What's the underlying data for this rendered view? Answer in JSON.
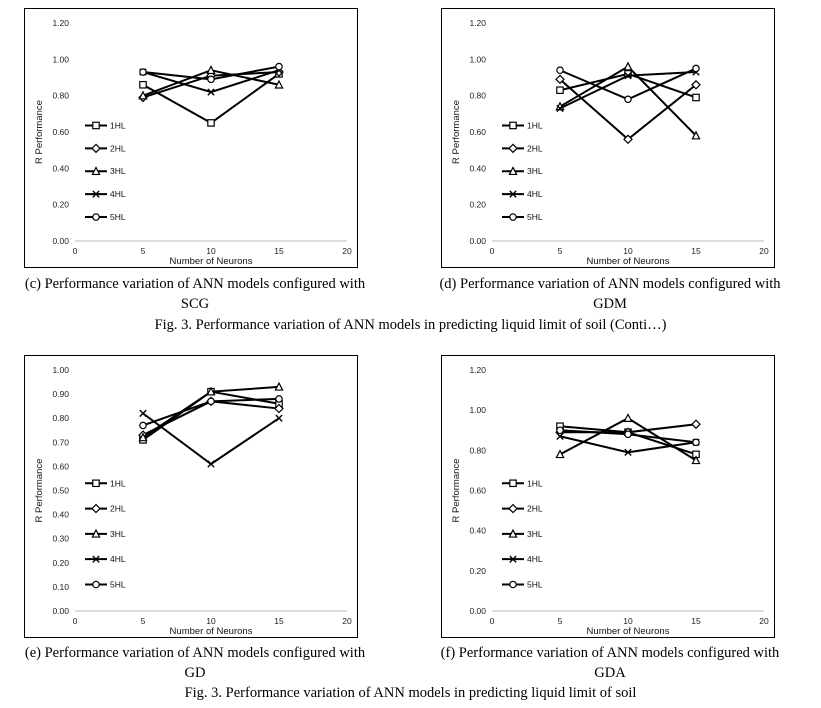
{
  "chart_data": [
    {
      "id": "c",
      "type": "line",
      "x": [
        5,
        10,
        15
      ],
      "xlim": [
        0,
        20
      ],
      "xticks": [
        0,
        5,
        10,
        15,
        20
      ],
      "ylim": [
        0,
        1.2
      ],
      "yticks": [
        "0.00",
        "0.20",
        "0.40",
        "0.60",
        "0.80",
        "1.00",
        "1.20"
      ],
      "xlabel": "Number of Neurons",
      "ylabel": "R Performance",
      "legend_position": "left",
      "series": [
        {
          "name": "1HL",
          "marker": "square",
          "values": [
            0.86,
            0.65,
            0.92
          ]
        },
        {
          "name": "2HL",
          "marker": "diamond",
          "values": [
            0.79,
            0.91,
            0.93
          ]
        },
        {
          "name": "3HL",
          "marker": "triangle",
          "values": [
            0.8,
            0.94,
            0.86
          ]
        },
        {
          "name": "4HL",
          "marker": "x",
          "values": [
            0.93,
            0.82,
            0.94
          ]
        },
        {
          "name": "5HL",
          "marker": "circle",
          "values": [
            0.93,
            0.89,
            0.96
          ]
        }
      ]
    },
    {
      "id": "d",
      "type": "line",
      "x": [
        5,
        10,
        15
      ],
      "xlim": [
        0,
        20
      ],
      "xticks": [
        0,
        5,
        10,
        15,
        20
      ],
      "ylim": [
        0,
        1.2
      ],
      "yticks": [
        "0.00",
        "0.20",
        "0.40",
        "0.60",
        "0.80",
        "1.00",
        "1.20"
      ],
      "xlabel": "Number of Neurons",
      "ylabel": "R Performance",
      "legend_position": "left",
      "series": [
        {
          "name": "1HL",
          "marker": "square",
          "values": [
            0.83,
            0.92,
            0.79
          ]
        },
        {
          "name": "2HL",
          "marker": "diamond",
          "values": [
            0.89,
            0.56,
            0.86
          ]
        },
        {
          "name": "3HL",
          "marker": "triangle",
          "values": [
            0.74,
            0.96,
            0.58
          ]
        },
        {
          "name": "4HL",
          "marker": "x",
          "values": [
            0.73,
            0.91,
            0.93
          ]
        },
        {
          "name": "5HL",
          "marker": "circle",
          "values": [
            0.94,
            0.78,
            0.95
          ]
        }
      ]
    },
    {
      "id": "e",
      "type": "line",
      "x": [
        5,
        10,
        15
      ],
      "xlim": [
        0,
        20
      ],
      "xticks": [
        0,
        5,
        10,
        15,
        20
      ],
      "ylim": [
        0,
        1.0
      ],
      "yticks": [
        "0.00",
        "0.10",
        "0.20",
        "0.30",
        "0.40",
        "0.50",
        "0.60",
        "0.70",
        "0.80",
        "0.90",
        "1.00"
      ],
      "xlabel": "Number of Neurons",
      "ylabel": "R Performance",
      "legend_position": "left",
      "series": [
        {
          "name": "1HL",
          "marker": "square",
          "values": [
            0.71,
            0.91,
            0.86
          ]
        },
        {
          "name": "2HL",
          "marker": "diamond",
          "values": [
            0.73,
            0.87,
            0.84
          ]
        },
        {
          "name": "3HL",
          "marker": "triangle",
          "values": [
            0.72,
            0.91,
            0.93
          ]
        },
        {
          "name": "4HL",
          "marker": "x",
          "values": [
            0.82,
            0.61,
            0.8
          ]
        },
        {
          "name": "5HL",
          "marker": "circle",
          "values": [
            0.77,
            0.87,
            0.88
          ]
        }
      ]
    },
    {
      "id": "f",
      "type": "line",
      "x": [
        5,
        10,
        15
      ],
      "xlim": [
        0,
        20
      ],
      "xticks": [
        0,
        5,
        10,
        15,
        20
      ],
      "ylim": [
        0,
        1.2
      ],
      "yticks": [
        "0.00",
        "0.20",
        "0.40",
        "0.60",
        "0.80",
        "1.00",
        "1.20"
      ],
      "xlabel": "Number of Neurons",
      "ylabel": "R Performance",
      "legend_position": "left",
      "series": [
        {
          "name": "1HL",
          "marker": "square",
          "values": [
            0.92,
            0.89,
            0.78
          ]
        },
        {
          "name": "2HL",
          "marker": "diamond",
          "values": [
            0.89,
            0.89,
            0.93
          ]
        },
        {
          "name": "3HL",
          "marker": "triangle",
          "values": [
            0.78,
            0.96,
            0.75
          ]
        },
        {
          "name": "4HL",
          "marker": "x",
          "values": [
            0.87,
            0.79,
            0.84
          ]
        },
        {
          "name": "5HL",
          "marker": "circle",
          "values": [
            0.9,
            0.88,
            0.84
          ]
        }
      ]
    }
  ],
  "captions": {
    "c_line1": "(c) Performance variation of ANN models configured with",
    "c_line2": "SCG",
    "d_line1": "(d) Performance variation of ANN models configured with",
    "d_line2": "GDM",
    "e_line1": "(e) Performance variation of ANN models configured with",
    "e_line2": "GD",
    "f_line1": "(f) Performance variation of ANN models configured with",
    "f_line2": "GDA",
    "fig_top": "Fig. 3. Performance variation of ANN models in predicting liquid limit of soil (Conti…)",
    "fig_bottom": "Fig. 3. Performance variation of ANN models in predicting liquid limit of soil"
  }
}
